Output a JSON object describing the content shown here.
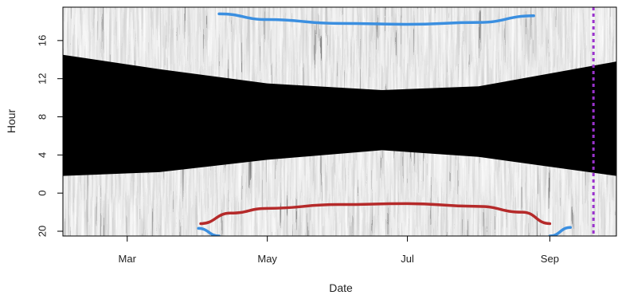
{
  "chart_data": {
    "type": "heatmap",
    "title": "",
    "xlabel": "Date",
    "ylabel": "Hour",
    "x_ticks": [
      {
        "label": "Mar",
        "date": "Mar 1"
      },
      {
        "label": "May",
        "date": "May 1"
      },
      {
        "label": "Jul",
        "date": "Jul 1"
      },
      {
        "label": "Sep",
        "date": "Sep 1"
      }
    ],
    "x_range": [
      "Feb 1",
      "Sep 30"
    ],
    "y_ticks": [
      {
        "label": "20",
        "clock_hour": 20
      },
      {
        "label": "0",
        "clock_hour": 0
      },
      {
        "label": "4",
        "clock_hour": 4
      },
      {
        "label": "8",
        "clock_hour": 8
      },
      {
        "label": "12",
        "clock_hour": 12
      },
      {
        "label": "16",
        "clock_hour": 16
      }
    ],
    "y_range": [
      "19:30",
      "19:30 next day"
    ],
    "y_axis_note": "Hour axis wraps around midnight; the bottom tick 20 is 20:00 of the preceding evening",
    "dark_band_center_hour": 8,
    "dark_band_edges": [
      {
        "date": "Feb 1",
        "lower_hour": 1.8,
        "upper_hour": 14.5
      },
      {
        "date": "Mar 15",
        "lower_hour": 2.2,
        "upper_hour": 13.0
      },
      {
        "date": "May 1",
        "lower_hour": 3.5,
        "upper_hour": 11.5
      },
      {
        "date": "Jun 20",
        "lower_hour": 4.5,
        "upper_hour": 10.8
      },
      {
        "date": "Aug 1",
        "lower_hour": 3.8,
        "upper_hour": 11.2
      },
      {
        "date": "Sep 30",
        "lower_hour": 1.8,
        "upper_hour": 13.8
      }
    ],
    "series": [
      {
        "color": "#3b8fe0",
        "description": "upper blue curve",
        "points": [
          {
            "date": "Apr 10",
            "hour": 18.8
          },
          {
            "date": "May 1",
            "hour": 18.2
          },
          {
            "date": "Jun 1",
            "hour": 17.8
          },
          {
            "date": "Jul 1",
            "hour": 17.7
          },
          {
            "date": "Aug 1",
            "hour": 17.9
          },
          {
            "date": "Aug 25",
            "hour": 18.6
          }
        ]
      },
      {
        "color": "#3b8fe0",
        "description": "lower-left blue segment",
        "points": [
          {
            "date": "Apr 1",
            "hour": 20.3
          },
          {
            "date": "Apr 10",
            "hour": 19.5
          }
        ]
      },
      {
        "color": "#3b8fe0",
        "description": "lower-right blue segment",
        "points": [
          {
            "date": "Sep 1",
            "hour": 19.5
          },
          {
            "date": "Sep 10",
            "hour": 20.4
          }
        ]
      },
      {
        "color": "#b52a2a",
        "description": "red curve",
        "points": [
          {
            "date": "Apr 2",
            "hour": 20.8
          },
          {
            "date": "Apr 15",
            "hour": 21.9
          },
          {
            "date": "May 1",
            "hour": 22.4
          },
          {
            "date": "Jun 1",
            "hour": 22.8
          },
          {
            "date": "Jul 1",
            "hour": 22.9
          },
          {
            "date": "Aug 1",
            "hour": 22.6
          },
          {
            "date": "Aug 20",
            "hour": 22.0
          },
          {
            "date": "Sep 1",
            "hour": 20.8
          }
        ]
      }
    ],
    "vertical_marker": {
      "date": "Sep 20",
      "color": "#9a32cd",
      "style": "dotted"
    },
    "colors": {
      "night_band": "#000000",
      "background_light": "#d2d2d2",
      "blue_curve": "#3b8fe0",
      "red_curve": "#b52a2a",
      "marker": "#9a32cd"
    },
    "grid": false,
    "legend": "none"
  }
}
